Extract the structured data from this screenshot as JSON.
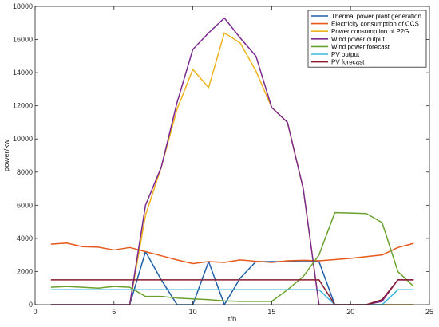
{
  "chart_data": {
    "type": "line",
    "title": "",
    "xlabel": "t/h",
    "ylabel": "power/kw",
    "xlim": [
      0,
      25
    ],
    "ylim": [
      0,
      18000
    ],
    "xticks": [
      0,
      5,
      10,
      15,
      20,
      25
    ],
    "yticks": [
      0,
      2000,
      4000,
      6000,
      8000,
      10000,
      12000,
      14000,
      16000,
      18000
    ],
    "grid": false,
    "legend_position": "top-right",
    "x": [
      1,
      2,
      3,
      4,
      5,
      6,
      7,
      8,
      9,
      10,
      11,
      12,
      13,
      14,
      15,
      16,
      17,
      18,
      19,
      20,
      21,
      22,
      23,
      24
    ],
    "series": [
      {
        "name": "Thermal power plant generation",
        "color": "#1f5ea8",
        "values": [
          0,
          0,
          0,
          0,
          0,
          0,
          3200,
          1500,
          0,
          0,
          2600,
          0,
          1600,
          2600,
          2600,
          2600,
          2600,
          2600,
          0,
          0,
          0,
          0,
          0,
          0
        ]
      },
      {
        "name": "Electricity consumption of CCS",
        "color": "#e8581a",
        "values": [
          3650,
          3720,
          3500,
          3470,
          3300,
          3450,
          3200,
          2950,
          2700,
          2480,
          2600,
          2550,
          2700,
          2620,
          2550,
          2650,
          2680,
          2650,
          2720,
          2800,
          2900,
          3000,
          3450,
          3700
        ]
      },
      {
        "name": "Power consumption of P2G",
        "color": "#f0b21e",
        "values": [
          0,
          0,
          0,
          0,
          0,
          0,
          5400,
          8300,
          11800,
          14200,
          13100,
          16400,
          15800,
          14100,
          11900,
          11000,
          7000,
          0,
          0,
          0,
          0,
          0,
          0,
          0
        ]
      },
      {
        "name": "Wind power output",
        "color": "#7b2a8e",
        "values": [
          0,
          0,
          0,
          0,
          0,
          0,
          6000,
          8300,
          12200,
          15400,
          16400,
          17300,
          16100,
          15000,
          11900,
          11000,
          7000,
          0,
          0,
          0,
          0,
          200,
          1500,
          1500
        ]
      },
      {
        "name": "Wind power forecast",
        "color": "#6aa12c",
        "values": [
          1050,
          1100,
          1050,
          1000,
          1100,
          1050,
          500,
          500,
          400,
          350,
          300,
          230,
          200,
          200,
          200,
          900,
          1700,
          3000,
          5550,
          5530,
          5500,
          4950,
          2000,
          1100
        ]
      },
      {
        "name": "PV output",
        "color": "#3bb8e0",
        "values": [
          900,
          900,
          900,
          900,
          900,
          900,
          900,
          900,
          900,
          900,
          900,
          900,
          900,
          900,
          900,
          900,
          900,
          900,
          0,
          0,
          0,
          0,
          900,
          900
        ]
      },
      {
        "name": "PV forecast",
        "color": "#8a1a2e",
        "values": [
          1500,
          1500,
          1500,
          1500,
          1500,
          1500,
          1500,
          1500,
          1500,
          1500,
          1500,
          1500,
          1500,
          1500,
          1500,
          1500,
          1500,
          1500,
          0,
          0,
          0,
          300,
          1500,
          1500
        ]
      }
    ]
  }
}
